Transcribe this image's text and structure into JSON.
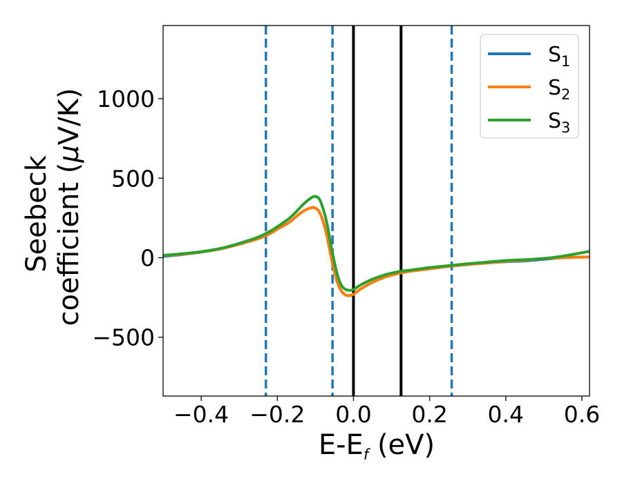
{
  "chart_data": {
    "type": "line",
    "xlabel": {
      "main": "E-E",
      "sub": "f",
      "unit": " (eV)"
    },
    "ylabel": {
      "line1": "Seebeck",
      "line2_pre": "coefficient  (",
      "mu": "μ",
      "line2_post": "V/K)"
    },
    "xlim": [
      -0.5,
      0.62
    ],
    "ylim": [
      -870,
      1460
    ],
    "xticks": [
      -0.4,
      -0.2,
      0.0,
      0.2,
      0.4,
      0.6
    ],
    "xtick_labels": [
      "−0.4",
      "−0.2",
      "0.0",
      "0.2",
      "0.4",
      "0.6"
    ],
    "yticks": [
      -500,
      0,
      500,
      1000
    ],
    "ytick_labels": [
      "−500",
      "0",
      "500",
      "1000"
    ],
    "legend_position": "top-right",
    "series": [
      {
        "name": "S",
        "sub": "1",
        "color": "#1f77b4",
        "points": [
          [
            -0.5,
            8
          ],
          [
            -0.45,
            20
          ],
          [
            -0.4,
            35
          ],
          [
            -0.35,
            55
          ],
          [
            -0.3,
            85
          ],
          [
            -0.25,
            120
          ],
          [
            -0.22,
            150
          ],
          [
            -0.2,
            180
          ],
          [
            -0.17,
            220
          ],
          [
            -0.15,
            260
          ],
          [
            -0.13,
            295
          ],
          [
            -0.11,
            315
          ],
          [
            -0.1,
            312
          ],
          [
            -0.09,
            290
          ],
          [
            -0.08,
            230
          ],
          [
            -0.07,
            140
          ],
          [
            -0.06,
            20
          ],
          [
            -0.05,
            -90
          ],
          [
            -0.04,
            -170
          ],
          [
            -0.03,
            -215
          ],
          [
            -0.02,
            -235
          ],
          [
            -0.01,
            -238
          ],
          [
            0.0,
            -230
          ],
          [
            0.02,
            -195
          ],
          [
            0.05,
            -155
          ],
          [
            0.08,
            -125
          ],
          [
            0.1,
            -110
          ],
          [
            0.125,
            -95
          ],
          [
            0.15,
            -85
          ],
          [
            0.2,
            -70
          ],
          [
            0.25,
            -55
          ],
          [
            0.3,
            -43
          ],
          [
            0.35,
            -33
          ],
          [
            0.4,
            -25
          ],
          [
            0.45,
            -20
          ],
          [
            0.5,
            -10
          ],
          [
            0.55,
            0
          ],
          [
            0.62,
            5
          ]
        ]
      },
      {
        "name": "S",
        "sub": "2",
        "color": "#ff7f0e",
        "points": [
          [
            -0.5,
            14
          ],
          [
            -0.45,
            22
          ],
          [
            -0.4,
            36
          ],
          [
            -0.35,
            55
          ],
          [
            -0.3,
            85
          ],
          [
            -0.25,
            120
          ],
          [
            -0.22,
            150
          ],
          [
            -0.2,
            180
          ],
          [
            -0.17,
            220
          ],
          [
            -0.15,
            260
          ],
          [
            -0.13,
            295
          ],
          [
            -0.11,
            315
          ],
          [
            -0.1,
            312
          ],
          [
            -0.09,
            290
          ],
          [
            -0.08,
            230
          ],
          [
            -0.07,
            140
          ],
          [
            -0.06,
            20
          ],
          [
            -0.05,
            -90
          ],
          [
            -0.04,
            -170
          ],
          [
            -0.03,
            -215
          ],
          [
            -0.02,
            -235
          ],
          [
            -0.01,
            -238
          ],
          [
            0.0,
            -230
          ],
          [
            0.02,
            -195
          ],
          [
            0.05,
            -155
          ],
          [
            0.08,
            -125
          ],
          [
            0.1,
            -110
          ],
          [
            0.125,
            -95
          ],
          [
            0.15,
            -85
          ],
          [
            0.2,
            -70
          ],
          [
            0.25,
            -55
          ],
          [
            0.3,
            -43
          ],
          [
            0.35,
            -33
          ],
          [
            0.4,
            -22
          ],
          [
            0.45,
            -15
          ],
          [
            0.5,
            -5
          ],
          [
            0.55,
            0
          ],
          [
            0.62,
            5
          ]
        ]
      },
      {
        "name": "S",
        "sub": "3",
        "color": "#2ca02c",
        "points": [
          [
            -0.5,
            15
          ],
          [
            -0.45,
            25
          ],
          [
            -0.4,
            38
          ],
          [
            -0.35,
            58
          ],
          [
            -0.3,
            90
          ],
          [
            -0.25,
            130
          ],
          [
            -0.22,
            165
          ],
          [
            -0.2,
            195
          ],
          [
            -0.17,
            245
          ],
          [
            -0.15,
            290
          ],
          [
            -0.13,
            340
          ],
          [
            -0.11,
            378
          ],
          [
            -0.1,
            385
          ],
          [
            -0.09,
            370
          ],
          [
            -0.08,
            310
          ],
          [
            -0.07,
            220
          ],
          [
            -0.06,
            90
          ],
          [
            -0.05,
            -30
          ],
          [
            -0.04,
            -125
          ],
          [
            -0.03,
            -180
          ],
          [
            -0.02,
            -200
          ],
          [
            -0.01,
            -205
          ],
          [
            0.0,
            -200
          ],
          [
            0.02,
            -170
          ],
          [
            0.05,
            -135
          ],
          [
            0.08,
            -110
          ],
          [
            0.1,
            -97
          ],
          [
            0.125,
            -85
          ],
          [
            0.15,
            -78
          ],
          [
            0.2,
            -62
          ],
          [
            0.25,
            -50
          ],
          [
            0.3,
            -38
          ],
          [
            0.35,
            -28
          ],
          [
            0.4,
            -18
          ],
          [
            0.45,
            -12
          ],
          [
            0.5,
            -5
          ],
          [
            0.55,
            10
          ],
          [
            0.62,
            40
          ]
        ]
      }
    ],
    "vlines": [
      {
        "x": -0.23,
        "style": "dashed",
        "color": "#1f77b4"
      },
      {
        "x": -0.055,
        "style": "dashed",
        "color": "#1f77b4"
      },
      {
        "x": 0.0,
        "style": "solid",
        "color": "#000000"
      },
      {
        "x": 0.125,
        "style": "solid",
        "color": "#000000"
      },
      {
        "x": 0.258,
        "style": "dashed",
        "color": "#1f77b4"
      }
    ]
  }
}
